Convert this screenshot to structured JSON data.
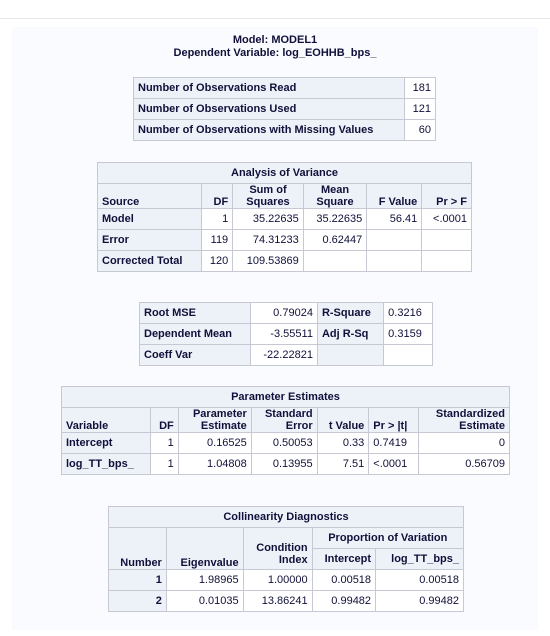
{
  "model_heading": "Model: MODEL1",
  "dependent_heading": "Dependent Variable: log_EOHHB_bps_",
  "observations": {
    "rows": [
      {
        "label": "Number of Observations Read",
        "value": "181"
      },
      {
        "label": "Number of Observations Used",
        "value": "121"
      },
      {
        "label": "Number of Observations with Missing Values",
        "value": "60"
      }
    ]
  },
  "anova": {
    "title": "Analysis of Variance",
    "headers": {
      "source": "Source",
      "df": "DF",
      "ss_line1": "Sum of",
      "ss_line2": "Squares",
      "ms_line1": "Mean",
      "ms_line2": "Square",
      "f": "F Value",
      "p": "Pr > F"
    },
    "rows": [
      {
        "source": "Model",
        "df": "1",
        "ss": "35.22635",
        "ms": "35.22635",
        "f": "56.41",
        "p": "<.0001"
      },
      {
        "source": "Error",
        "df": "119",
        "ss": "74.31233",
        "ms": "0.62447",
        "f": "",
        "p": ""
      },
      {
        "source": "Corrected Total",
        "df": "120",
        "ss": "109.53869",
        "ms": "",
        "f": "",
        "p": ""
      }
    ]
  },
  "fit": {
    "rows": [
      {
        "label1": "Root MSE",
        "value1": "0.79024",
        "label2": "R-Square",
        "value2": "0.3216"
      },
      {
        "label1": "Dependent Mean",
        "value1": "-3.55511",
        "label2": "Adj R-Sq",
        "value2": "0.3159"
      },
      {
        "label1": "Coeff Var",
        "value1": "-22.22821",
        "label2": "",
        "value2": ""
      }
    ]
  },
  "params": {
    "title": "Parameter Estimates",
    "headers": {
      "variable": "Variable",
      "df": "DF",
      "est_line1": "Parameter",
      "est_line2": "Estimate",
      "se_line1": "Standard",
      "se_line2": "Error",
      "t": "t Value",
      "p": "Pr > |t|",
      "std_line1": "Standardized",
      "std_line2": "Estimate"
    },
    "rows": [
      {
        "variable": "Intercept",
        "df": "1",
        "estimate": "0.16525",
        "se": "0.50053",
        "t": "0.33",
        "p": "0.7419",
        "std": "0"
      },
      {
        "variable": "log_TT_bps_",
        "df": "1",
        "estimate": "1.04808",
        "se": "0.13955",
        "t": "7.51",
        "p": "<.0001",
        "std": "0.56709"
      }
    ]
  },
  "collin": {
    "title": "Collinearity Diagnostics",
    "headers": {
      "number": "Number",
      "eigen": "Eigenvalue",
      "ci_line1": "Condition",
      "ci_line2": "Index",
      "prop": "Proportion of Variation",
      "intercept": "Intercept",
      "var": "log_TT_bps_"
    },
    "rows": [
      {
        "number": "1",
        "eigen": "1.98965",
        "ci": "1.00000",
        "p_int": "0.00518",
        "p_var": "0.00518"
      },
      {
        "number": "2",
        "eigen": "0.01035",
        "ci": "13.86241",
        "p_int": "0.99482",
        "p_var": "0.99482"
      }
    ]
  }
}
